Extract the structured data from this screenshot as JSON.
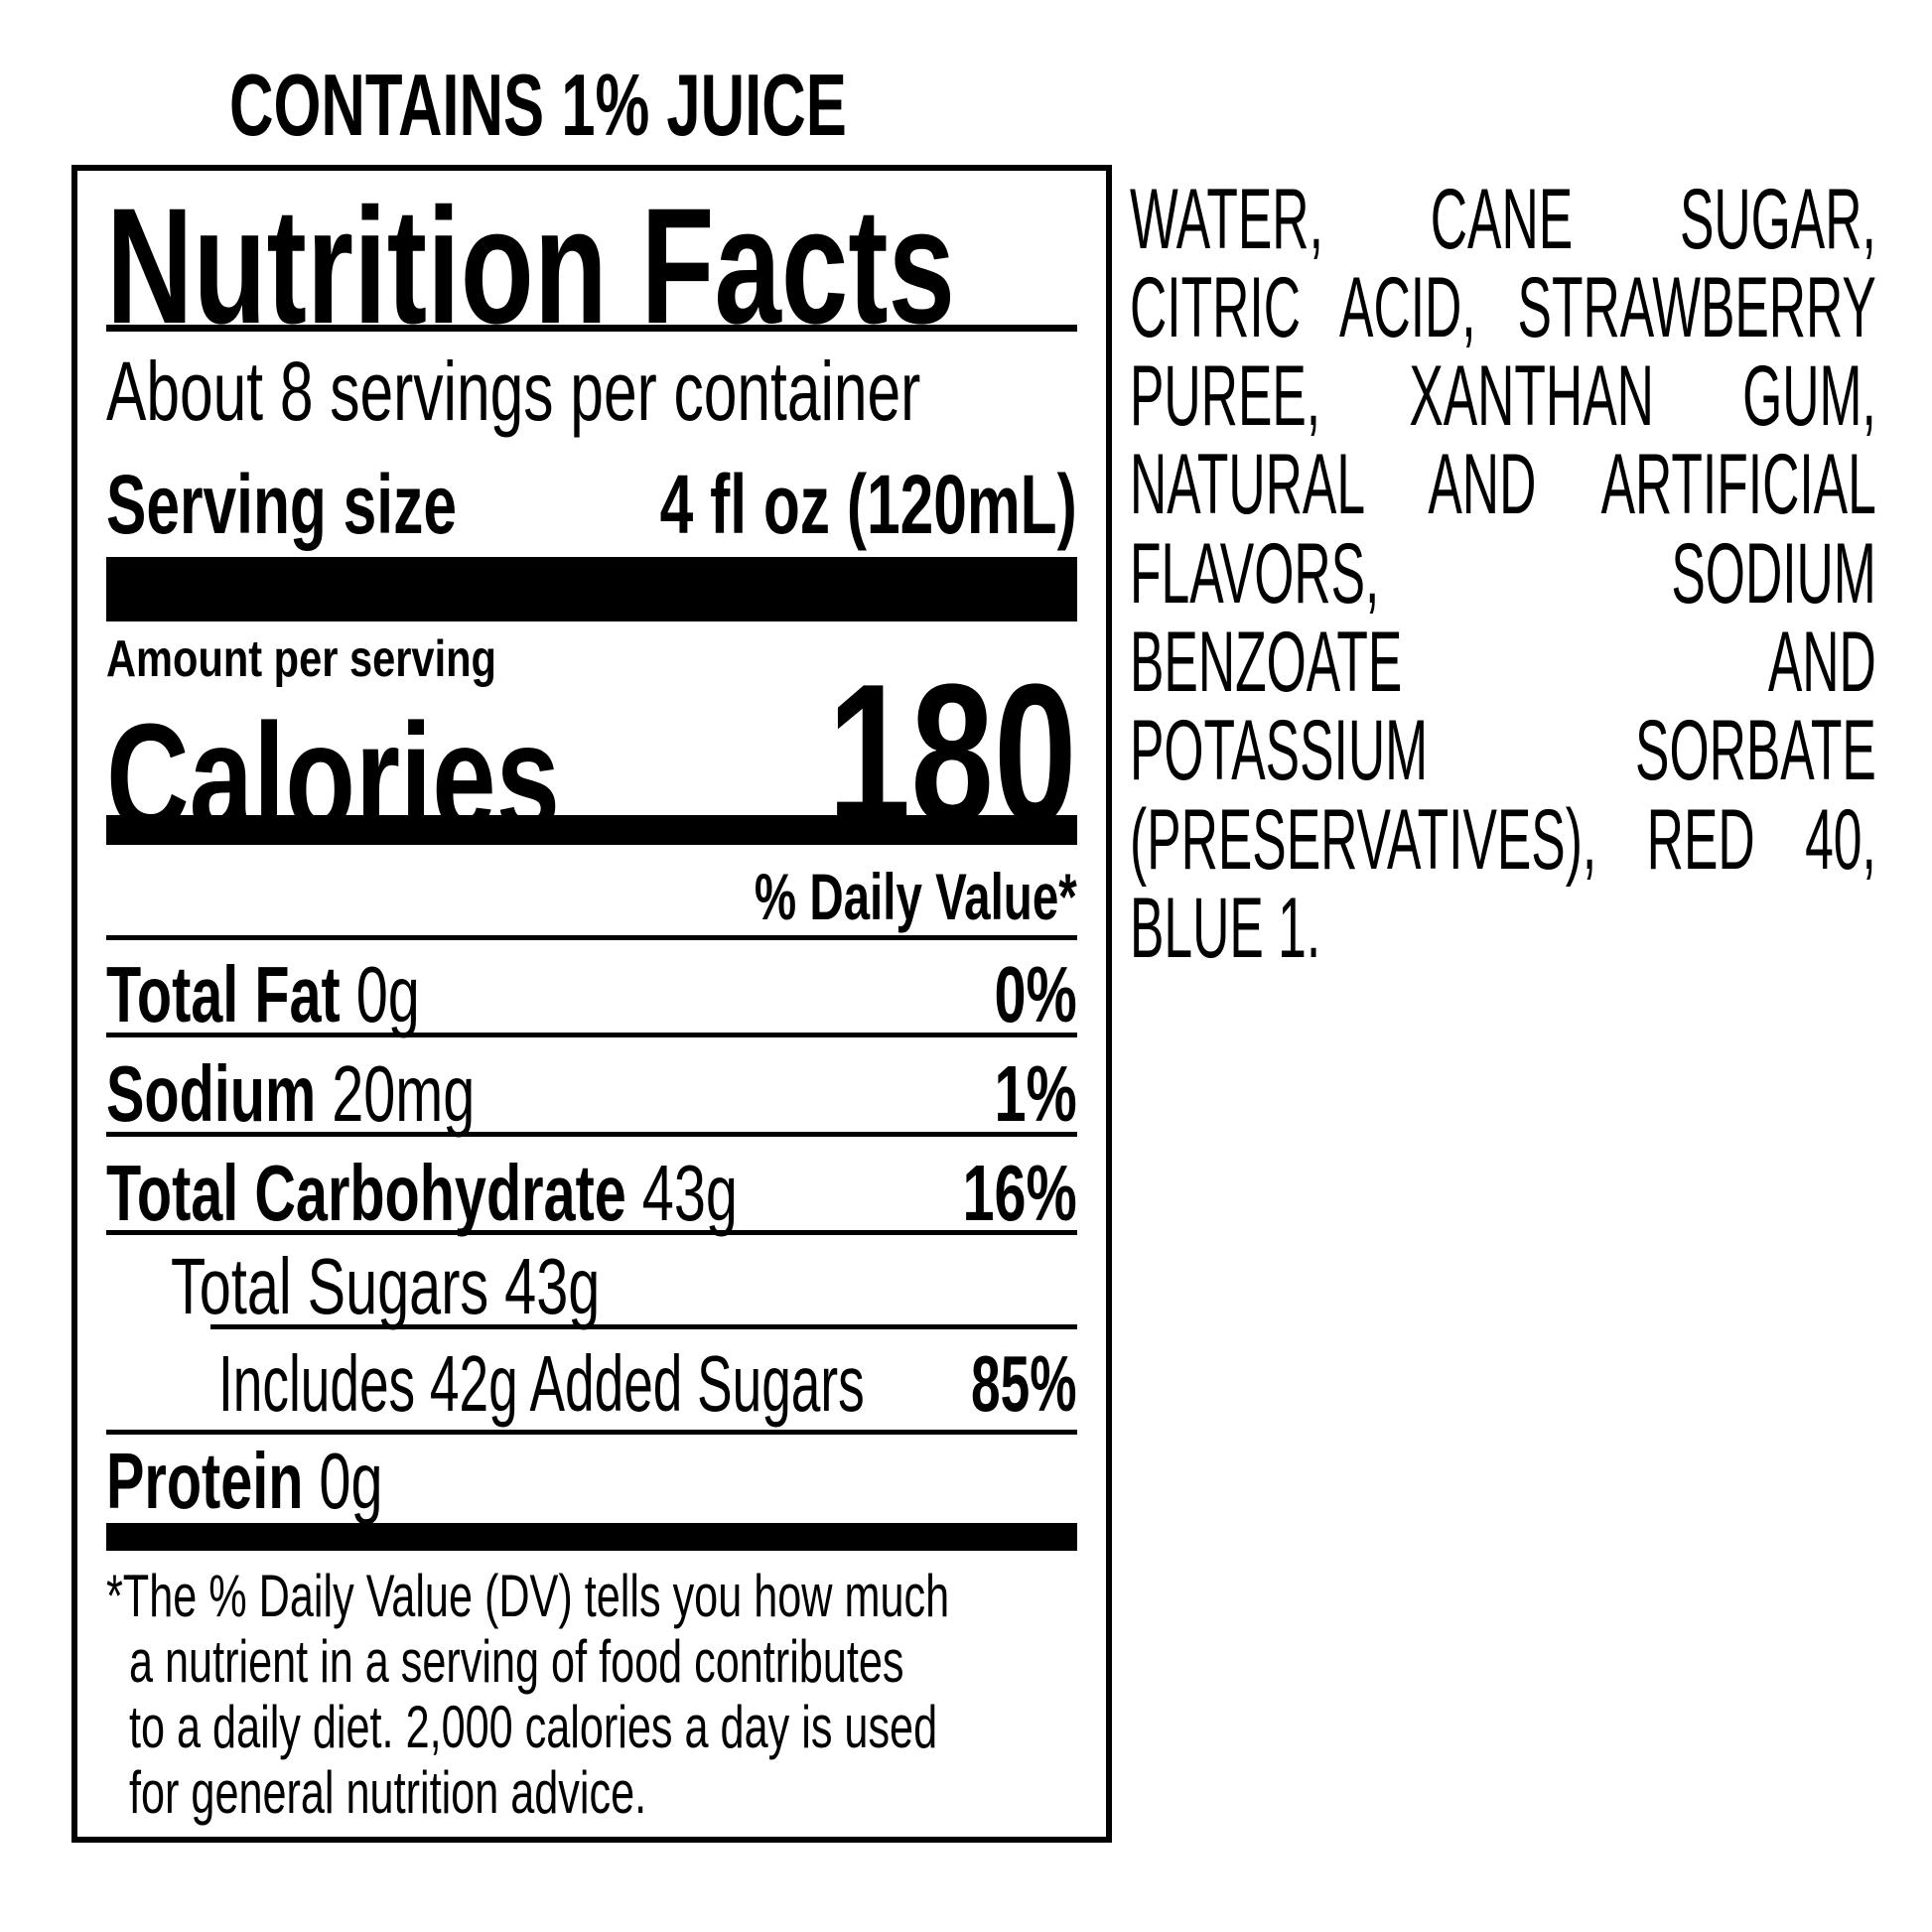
{
  "header": {
    "juice": "CONTAINS 1% JUICE"
  },
  "label": {
    "title": "Nutrition Facts",
    "servings": "About 8 servings per container",
    "serving_size_label": "Serving size",
    "serving_size_value": "4 fl oz (120mL)",
    "amount_per_serving": "Amount per serving",
    "calories_label": "Calories",
    "calories_value": "180",
    "dv_header": "% Daily Value*",
    "nutrients": [
      {
        "name": "Total Fat",
        "amount": "0g",
        "dv": "0%"
      },
      {
        "name": "Sodium",
        "amount": "20mg",
        "dv": "1%"
      },
      {
        "name": "Total Carbohydrate",
        "amount": "43g",
        "dv": "16%"
      },
      {
        "name": "Total Sugars 43g",
        "amount": "",
        "dv": ""
      },
      {
        "name": "Includes 42g Added Sugars",
        "amount": "",
        "dv": "85%"
      },
      {
        "name": "Protein",
        "amount": "0g",
        "dv": ""
      }
    ],
    "footnote": [
      "*The % Daily Value (DV) tells you how much",
      "a nutrient in a serving of food contributes",
      "to a daily diet. 2,000 calories a day is used",
      "for general nutrition advice."
    ]
  },
  "ingredients": [
    "WATER, CANE SUGAR,",
    "CITRIC ACID, STRAWBERRY",
    "PUREE, XANTHAN GUM,",
    "NATURAL AND ARTIFICIAL",
    "FLAVORS, SODIUM",
    "BENZOATE AND",
    "POTASSIUM SORBATE",
    "(PRESERVATIVES), RED 40,",
    "BLUE 1."
  ]
}
